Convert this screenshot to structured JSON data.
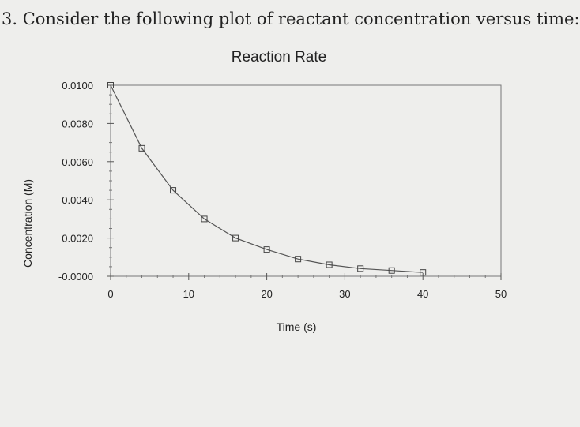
{
  "question": "3. Consider the following plot of reactant concentration versus time:",
  "chart_data": {
    "type": "scatter",
    "title": "Reaction Rate",
    "xlabel": "Time (s)",
    "ylabel": "Concentration (M)",
    "xlim": [
      0,
      50
    ],
    "ylim": [
      0,
      0.01
    ],
    "x_ticks": [
      "0",
      "10",
      "20",
      "30",
      "40",
      "50"
    ],
    "y_ticks": [
      "-0.0000",
      "0.0020",
      "0.0040",
      "0.0060",
      "0.0080",
      "0.0100"
    ],
    "grid": false,
    "connected": true,
    "marker": "square",
    "series": [
      {
        "x": [
          0,
          4,
          8,
          12,
          16,
          20,
          24,
          28,
          32,
          36,
          40
        ],
        "y": [
          0.01,
          0.0067,
          0.0045,
          0.003,
          0.002,
          0.0014,
          0.0009,
          0.0006,
          0.0004,
          0.0003,
          0.0002
        ]
      }
    ]
  }
}
